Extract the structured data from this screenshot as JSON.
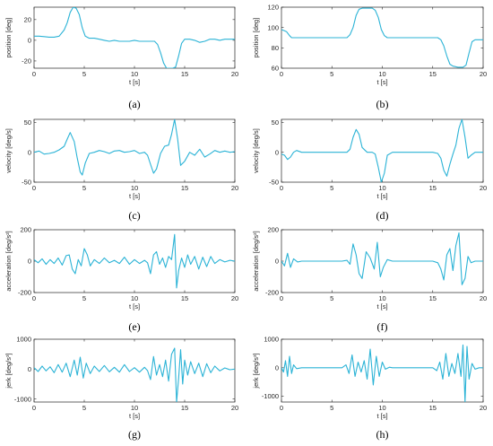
{
  "style": {
    "line_color": "#2bb3d6",
    "axis_color": "#262626",
    "background": "#ffffff"
  },
  "chart_data": [
    {
      "type": "line",
      "caption": "(a)",
      "ylabel": "position [deg]",
      "xlabel": "t [s]",
      "xlim": [
        0,
        20
      ],
      "ylim": [
        -27,
        32
      ],
      "xticks": [
        0,
        5,
        10,
        15,
        20
      ],
      "yticks": [
        -20,
        0,
        20
      ],
      "series": [
        {
          "x": [
            0,
            0.5,
            1,
            1.5,
            2,
            2.5,
            3,
            3.3,
            3.6,
            3.9,
            4.2,
            4.5,
            4.8,
            5.1,
            5.5,
            6,
            6.5,
            7,
            7.5,
            8,
            8.5,
            9,
            9.5,
            10,
            10.5,
            11,
            11.5,
            12,
            12.3,
            12.6,
            12.9,
            13.2,
            13.5,
            13.8,
            14.1,
            14.4,
            14.7,
            15,
            15.5,
            16,
            16.5,
            17,
            17.5,
            18,
            18.5,
            19,
            19.5,
            20
          ],
          "y": [
            4,
            4,
            3.5,
            3,
            3,
            4,
            10,
            17,
            27,
            32,
            31,
            25,
            12,
            4,
            2,
            2,
            1,
            0,
            -1,
            0,
            -1,
            -1,
            -1,
            0,
            -1,
            -1,
            -1,
            -1,
            -4,
            -12,
            -22,
            -27,
            -27,
            -27,
            -26,
            -15,
            -3,
            1,
            1,
            0,
            -2,
            -1,
            1,
            1,
            0,
            1,
            1,
            1
          ]
        }
      ]
    },
    {
      "type": "line",
      "caption": "(b)",
      "ylabel": "position [deg]",
      "xlabel": "t [s]",
      "xlim": [
        0,
        20
      ],
      "ylim": [
        60,
        120
      ],
      "xticks": [
        0,
        5,
        10,
        15,
        20
      ],
      "yticks": [
        60,
        80,
        100,
        120
      ],
      "series": [
        {
          "x": [
            0,
            0.5,
            0.8,
            1,
            1.5,
            2,
            3,
            4,
            5,
            6,
            6.5,
            6.8,
            7.1,
            7.4,
            7.7,
            8,
            8.5,
            9,
            9.3,
            9.6,
            9.9,
            10.2,
            10.5,
            11,
            12,
            13,
            14,
            15,
            15.5,
            15.8,
            16.1,
            16.4,
            16.7,
            17,
            17.5,
            18,
            18.3,
            18.6,
            18.9,
            19.2,
            19.5,
            20
          ],
          "y": [
            98,
            96,
            92,
            90,
            90,
            90,
            90,
            90,
            90,
            90,
            90,
            93,
            100,
            112,
            118,
            119,
            119,
            119,
            117,
            110,
            98,
            92,
            90,
            90,
            90,
            90,
            90,
            90,
            90,
            88,
            82,
            72,
            64,
            62,
            61,
            61,
            63,
            75,
            86,
            88,
            88,
            88
          ]
        }
      ]
    },
    {
      "type": "line",
      "caption": "(c)",
      "ylabel": "velocity [deg/s]",
      "xlabel": "t [s]",
      "xlim": [
        0,
        20
      ],
      "ylim": [
        -50,
        55
      ],
      "xticks": [
        0,
        5,
        10,
        15,
        20
      ],
      "yticks": [
        -50,
        0,
        50
      ],
      "series": [
        {
          "x": [
            0,
            0.5,
            1,
            1.5,
            2,
            2.5,
            3,
            3.3,
            3.6,
            4,
            4.3,
            4.6,
            4.8,
            5.1,
            5.5,
            6,
            6.5,
            7,
            7.5,
            8,
            8.5,
            9,
            9.5,
            10,
            10.5,
            11,
            11.3,
            11.6,
            11.9,
            12.2,
            12.6,
            13,
            13.4,
            13.7,
            14,
            14.3,
            14.6,
            15,
            15.5,
            16,
            16.5,
            17,
            17.5,
            18,
            18.5,
            19,
            19.5,
            20
          ],
          "y": [
            0,
            2,
            -3,
            -2,
            0,
            4,
            10,
            22,
            33,
            18,
            -10,
            -33,
            -38,
            -18,
            -2,
            0,
            3,
            1,
            -2,
            2,
            3,
            0,
            1,
            3,
            -2,
            0,
            -5,
            -20,
            -35,
            -28,
            -2,
            10,
            12,
            30,
            55,
            22,
            -22,
            -15,
            0,
            -5,
            5,
            -8,
            -3,
            3,
            0,
            2,
            0,
            1
          ]
        }
      ]
    },
    {
      "type": "line",
      "caption": "(d)",
      "ylabel": "velocity [deg/s]",
      "xlabel": "t [s]",
      "xlim": [
        0,
        20
      ],
      "ylim": [
        -50,
        55
      ],
      "xticks": [
        0,
        5,
        10,
        15,
        20
      ],
      "yticks": [
        -50,
        0,
        50
      ],
      "series": [
        {
          "x": [
            0,
            0.3,
            0.6,
            0.9,
            1.2,
            1.5,
            2,
            3,
            4,
            5,
            6,
            6.5,
            6.8,
            7.1,
            7.4,
            7.7,
            8,
            8.5,
            9,
            9.3,
            9.6,
            9.9,
            10.2,
            10.5,
            11,
            12,
            13,
            14,
            15,
            15.5,
            15.8,
            16.1,
            16.4,
            16.7,
            17,
            17.3,
            17.6,
            17.9,
            18.2,
            18.5,
            18.8,
            19.2,
            19.6,
            20
          ],
          "y": [
            -3,
            -5,
            -12,
            -8,
            0,
            3,
            0,
            0,
            0,
            0,
            0,
            0,
            5,
            25,
            38,
            30,
            8,
            0,
            0,
            -3,
            -25,
            -50,
            -35,
            -5,
            0,
            0,
            0,
            0,
            0,
            -2,
            -10,
            -30,
            -40,
            -20,
            -3,
            12,
            40,
            55,
            25,
            -10,
            -5,
            0,
            0,
            0
          ]
        }
      ]
    },
    {
      "type": "line",
      "caption": "(e)",
      "ylabel": "acceleration [deg/s²]",
      "xlabel": "t [s]",
      "xlim": [
        0,
        20
      ],
      "ylim": [
        -200,
        200
      ],
      "xticks": [
        0,
        5,
        10,
        15,
        20
      ],
      "yticks": [
        -200,
        0,
        200
      ],
      "series": [
        {
          "x": [
            0,
            0.4,
            0.8,
            1.2,
            1.6,
            2,
            2.4,
            2.8,
            3.2,
            3.5,
            3.8,
            4.1,
            4.4,
            4.7,
            5,
            5.3,
            5.6,
            6,
            6.5,
            7,
            7.5,
            8,
            8.5,
            9,
            9.5,
            10,
            10.5,
            11,
            11.3,
            11.6,
            11.9,
            12.2,
            12.5,
            12.8,
            13.1,
            13.4,
            13.7,
            14,
            14.2,
            14.4,
            14.7,
            15,
            15.3,
            15.6,
            16,
            16.4,
            16.8,
            17.2,
            17.6,
            18,
            18.5,
            19,
            19.5,
            20
          ],
          "y": [
            10,
            -10,
            15,
            -20,
            10,
            -15,
            20,
            -25,
            35,
            40,
            -50,
            -80,
            10,
            -30,
            80,
            40,
            -30,
            10,
            -15,
            20,
            -10,
            5,
            -15,
            25,
            -20,
            10,
            -15,
            5,
            -10,
            -80,
            40,
            60,
            -20,
            20,
            -40,
            30,
            10,
            170,
            -170,
            -60,
            20,
            -40,
            40,
            -20,
            30,
            -50,
            25,
            -35,
            30,
            -15,
            10,
            -5,
            5,
            0
          ]
        }
      ]
    },
    {
      "type": "line",
      "caption": "(f)",
      "ylabel": "acceleration [deg/s²]",
      "xlabel": "t [s]",
      "xlim": [
        0,
        20
      ],
      "ylim": [
        -200,
        200
      ],
      "xticks": [
        0,
        5,
        10,
        15,
        20
      ],
      "yticks": [
        -200,
        0,
        200
      ],
      "series": [
        {
          "x": [
            0,
            0.3,
            0.6,
            0.9,
            1.2,
            1.6,
            2,
            3,
            4,
            5,
            6,
            6.5,
            6.8,
            7.1,
            7.4,
            7.7,
            8,
            8.4,
            8.8,
            9.2,
            9.5,
            9.8,
            10.1,
            10.5,
            11,
            12,
            13,
            14,
            15,
            15.5,
            15.8,
            16.1,
            16.4,
            16.7,
            17,
            17.3,
            17.6,
            17.9,
            18.2,
            18.5,
            18.8,
            19.2,
            19.6,
            20
          ],
          "y": [
            0,
            -30,
            50,
            -40,
            15,
            -5,
            0,
            0,
            0,
            0,
            0,
            5,
            -20,
            110,
            40,
            -80,
            -110,
            60,
            20,
            -50,
            120,
            -100,
            -40,
            10,
            0,
            0,
            0,
            0,
            0,
            -10,
            -50,
            -120,
            40,
            80,
            -60,
            100,
            180,
            -150,
            -110,
            30,
            -10,
            0,
            0,
            0
          ]
        }
      ]
    },
    {
      "type": "line",
      "caption": "(g)",
      "ylabel": "jerk [deg/s³]",
      "xlabel": "t [s]",
      "xlim": [
        0,
        20
      ],
      "ylim": [
        -1100,
        1000
      ],
      "xticks": [
        0,
        5,
        10,
        15,
        20
      ],
      "yticks": [
        -1000,
        0,
        1000
      ],
      "series": [
        {
          "x": [
            0,
            0.4,
            0.8,
            1.2,
            1.6,
            2,
            2.4,
            2.8,
            3.2,
            3.6,
            4,
            4.3,
            4.6,
            4.9,
            5.2,
            5.6,
            6,
            6.5,
            7,
            7.5,
            8,
            8.5,
            9,
            9.5,
            10,
            10.5,
            11,
            11.3,
            11.6,
            11.9,
            12.2,
            12.5,
            12.8,
            13.1,
            13.4,
            13.7,
            14,
            14.2,
            14.4,
            14.6,
            14.8,
            15,
            15.3,
            15.6,
            16,
            16.4,
            16.8,
            17.2,
            17.6,
            18,
            18.5,
            19,
            19.5,
            20
          ],
          "y": [
            50,
            -80,
            100,
            -60,
            80,
            -120,
            150,
            -100,
            200,
            -250,
            300,
            -200,
            400,
            -300,
            200,
            -150,
            100,
            -80,
            120,
            -90,
            60,
            -100,
            150,
            -80,
            50,
            -100,
            60,
            -50,
            -350,
            420,
            -200,
            150,
            -250,
            300,
            -400,
            500,
            700,
            -1100,
            -300,
            650,
            -500,
            300,
            -200,
            250,
            -150,
            200,
            -250,
            180,
            -120,
            100,
            -60,
            40,
            -20,
            0
          ]
        }
      ]
    },
    {
      "type": "line",
      "caption": "(h)",
      "ylabel": "jerk [deg/s³]",
      "xlabel": "t [s]",
      "xlim": [
        0,
        20
      ],
      "ylim": [
        -1200,
        1000
      ],
      "xticks": [
        0,
        5,
        10,
        15,
        20
      ],
      "yticks": [
        -1000,
        0,
        1000
      ],
      "series": [
        {
          "x": [
            0,
            0.2,
            0.4,
            0.6,
            0.8,
            1,
            1.2,
            1.5,
            2,
            3,
            4,
            5,
            6,
            6.4,
            6.7,
            7,
            7.3,
            7.6,
            7.9,
            8.2,
            8.5,
            8.8,
            9.1,
            9.4,
            9.7,
            10,
            10.3,
            10.7,
            11,
            12,
            13,
            14,
            15,
            15.4,
            15.7,
            16,
            16.3,
            16.6,
            16.9,
            17.2,
            17.5,
            17.8,
            18,
            18.2,
            18.4,
            18.6,
            18.9,
            19.2,
            19.6,
            20
          ],
          "y": [
            0,
            -150,
            250,
            -300,
            400,
            -200,
            100,
            -30,
            0,
            0,
            0,
            0,
            0,
            100,
            -200,
            450,
            -300,
            200,
            -150,
            250,
            -400,
            650,
            -600,
            400,
            -300,
            200,
            -50,
            20,
            0,
            0,
            0,
            0,
            0,
            -100,
            200,
            -400,
            500,
            -300,
            150,
            -200,
            500,
            -300,
            800,
            -1200,
            750,
            -400,
            150,
            -50,
            0,
            0
          ]
        }
      ]
    }
  ]
}
